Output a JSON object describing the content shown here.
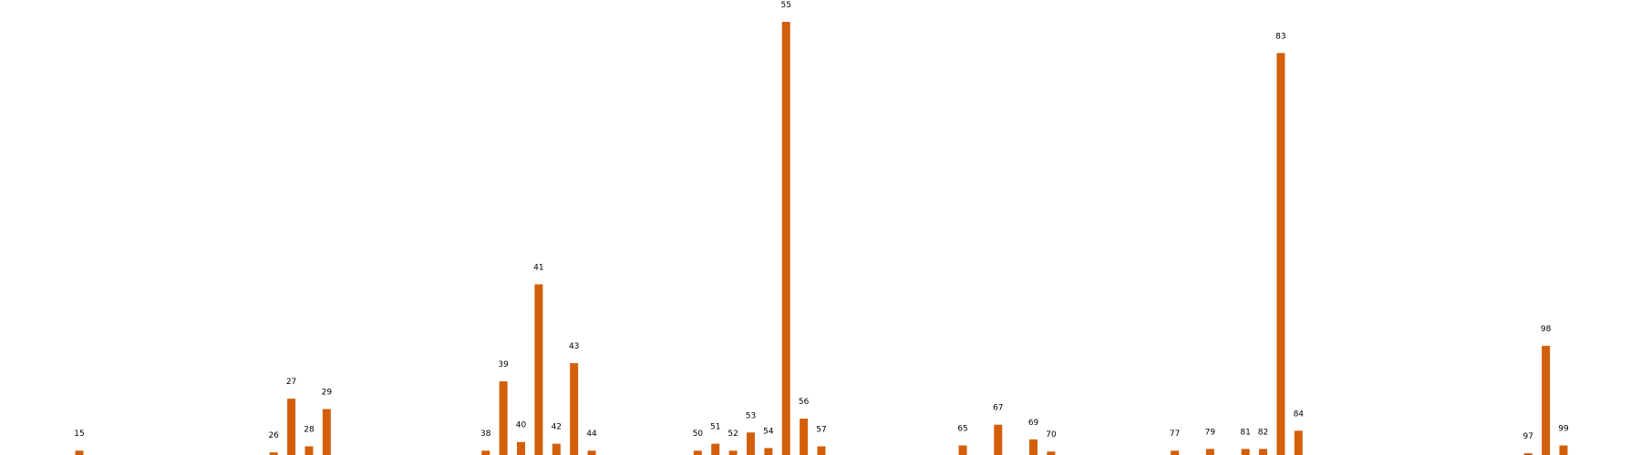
{
  "chart_data": {
    "type": "bar",
    "title": "",
    "xlabel": "",
    "ylabel": "",
    "grid": false,
    "xlim": [
      14,
      100
    ],
    "ylim": [
      0,
      50
    ],
    "color": "#D35F0B",
    "x": [
      15,
      26,
      27,
      28,
      29,
      38,
      39,
      40,
      41,
      42,
      43,
      44,
      50,
      51,
      52,
      53,
      54,
      55,
      56,
      57,
      65,
      67,
      69,
      70,
      77,
      79,
      81,
      82,
      83,
      84,
      97,
      98,
      99
    ],
    "labels": [
      "15",
      "26",
      "27",
      "28",
      "29",
      "38",
      "39",
      "40",
      "41",
      "42",
      "43",
      "44",
      "50",
      "51",
      "52",
      "53",
      "54",
      "55",
      "56",
      "57",
      "65",
      "67",
      "69",
      "70",
      "77",
      "79",
      "81",
      "82",
      "83",
      "84",
      "97",
      "98",
      "99"
    ],
    "values": [
      0.5,
      0.3,
      6.5,
      1.0,
      5.3,
      0.5,
      8.5,
      1.5,
      19.7,
      1.3,
      10.6,
      0.5,
      0.5,
      1.3,
      0.5,
      2.6,
      0.8,
      50.0,
      4.2,
      1.0,
      1.1,
      3.5,
      1.8,
      0.4,
      0.5,
      0.7,
      0.7,
      0.7,
      46.4,
      2.8,
      0.2,
      12.6,
      1.1
    ]
  }
}
